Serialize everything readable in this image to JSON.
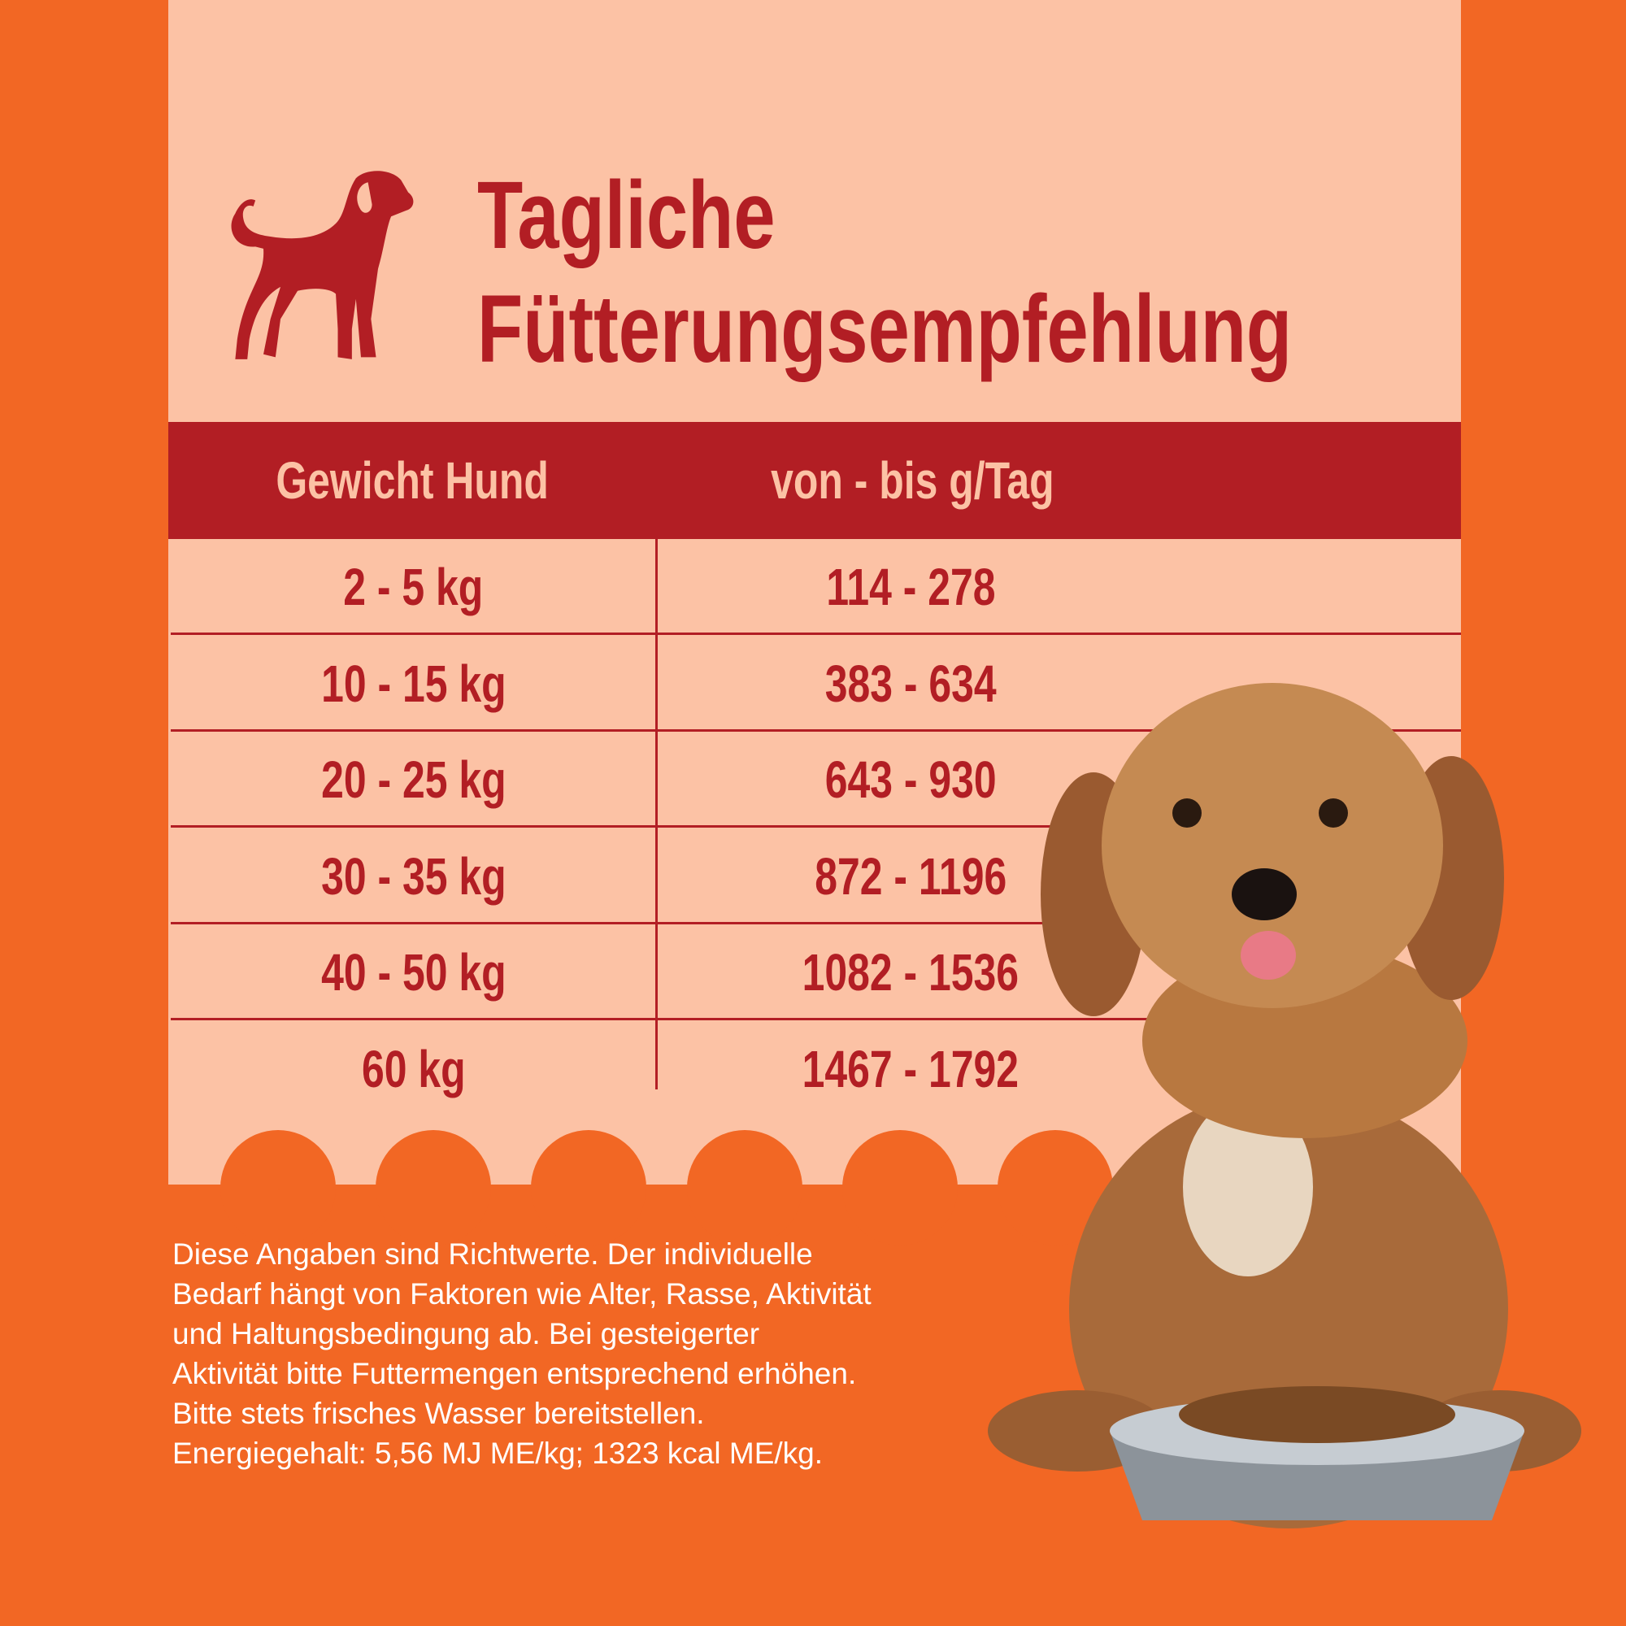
{
  "colors": {
    "background": "#F26724",
    "panel": "#FCC2A5",
    "accent": "#B21E24",
    "note_text": "#FFFFFF"
  },
  "header": {
    "title_line1": "Tagliche",
    "title_line2": "Fütterungsempfehlung",
    "icon": "dog-silhouette-icon"
  },
  "table": {
    "headers": [
      "Gewicht Hund",
      "von - bis  g/Tag"
    ],
    "rows": [
      {
        "weight": "2 - 5 kg",
        "amount": "114 - 278"
      },
      {
        "weight": "10 - 15 kg",
        "amount": "383 - 634"
      },
      {
        "weight": "20 - 25 kg",
        "amount": "643 - 930"
      },
      {
        "weight": "30 - 35 kg",
        "amount": "872 - 1196"
      },
      {
        "weight": "40 - 50 kg",
        "amount": "1082 - 1536"
      },
      {
        "weight": "60 kg",
        "amount": "1467 - 1792"
      }
    ]
  },
  "note": {
    "lines": [
      "Diese Angaben sind Richtwerte. Der individuelle",
      "Bedarf hängt von Faktoren wie Alter, Rasse, Aktivität",
      "und Haltungsbedingung ab. Bei gesteigerter",
      "Aktivität bitte Futtermengen entsprechend erhöhen.",
      "Bitte stets frisches Wasser bereitstellen.",
      "Energiegehalt: 5,56 MJ ME/kg; 1323 kcal ME/kg."
    ]
  }
}
